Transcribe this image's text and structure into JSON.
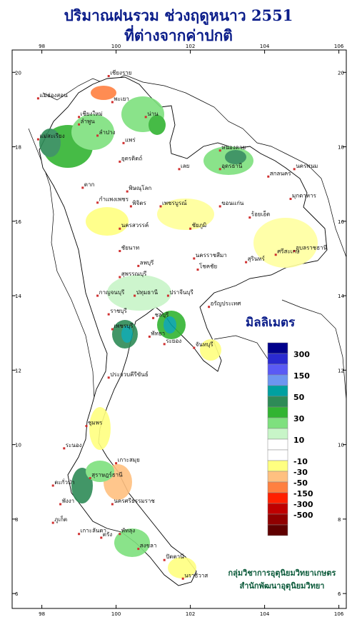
{
  "title_line1": "ปริมาณฝนรวม ช่วงฤดูหนาว 2551",
  "title_line2": "ที่ต่างจากค่าปกติ",
  "legend": {
    "unit": "มิลลิเมตร",
    "colors": [
      "#00008b",
      "#2a2ad0",
      "#5a5af5",
      "#6d95f0",
      "#00a0a0",
      "#2e8b57",
      "#32b432",
      "#7ee07e",
      "#c8f5c8",
      "#ffffff",
      "#ffffff",
      "#ffff80",
      "#ffc080",
      "#ff8040",
      "#ff2000",
      "#c00000",
      "#900000",
      "#600000"
    ],
    "labels": [
      "300",
      "150",
      "50",
      "30",
      "10",
      "-10",
      "-30",
      "-50",
      "-150",
      "-300",
      "-500"
    ]
  },
  "axes": {
    "lon_ticks": [
      "98",
      "100",
      "102",
      "104",
      "106"
    ],
    "lat_ticks": [
      "20",
      "18",
      "16",
      "14",
      "12",
      "10",
      "8",
      "6"
    ]
  },
  "places": [
    {
      "name": "เชียงราย",
      "lon": 99.8,
      "lat": 19.9
    },
    {
      "name": "แม่ฮ่องสอน",
      "lon": 97.9,
      "lat": 19.3
    },
    {
      "name": "พะเยา",
      "lon": 99.9,
      "lat": 19.2
    },
    {
      "name": "เชียงใหม่",
      "lon": 99.0,
      "lat": 18.8
    },
    {
      "name": "น่าน",
      "lon": 100.8,
      "lat": 18.8
    },
    {
      "name": "ลำพูน",
      "lon": 99.0,
      "lat": 18.6
    },
    {
      "name": "ลำปาง",
      "lon": 99.5,
      "lat": 18.3
    },
    {
      "name": "แพร่",
      "lon": 100.2,
      "lat": 18.1
    },
    {
      "name": "แม่สะเรียง",
      "lon": 97.9,
      "lat": 18.2
    },
    {
      "name": "อุตรดิตถ์",
      "lon": 100.1,
      "lat": 17.6
    },
    {
      "name": "หนองคาย",
      "lon": 102.8,
      "lat": 17.9
    },
    {
      "name": "อุดรธานี",
      "lon": 102.8,
      "lat": 17.4
    },
    {
      "name": "เลย",
      "lon": 101.7,
      "lat": 17.4
    },
    {
      "name": "สกลนคร",
      "lon": 104.1,
      "lat": 17.2
    },
    {
      "name": "นครพนม",
      "lon": 104.8,
      "lat": 17.4
    },
    {
      "name": "ตาก",
      "lon": 99.1,
      "lat": 16.9
    },
    {
      "name": "พิษณุโลก",
      "lon": 100.3,
      "lat": 16.8
    },
    {
      "name": "มุกดาหาร",
      "lon": 104.7,
      "lat": 16.6
    },
    {
      "name": "กำแพงเพชร",
      "lon": 99.5,
      "lat": 16.5
    },
    {
      "name": "พิจิตร",
      "lon": 100.4,
      "lat": 16.4
    },
    {
      "name": "เพชรบูรณ์",
      "lon": 101.2,
      "lat": 16.4
    },
    {
      "name": "ขอนแก่น",
      "lon": 102.8,
      "lat": 16.4
    },
    {
      "name": "นครสวรรค์",
      "lon": 100.1,
      "lat": 15.8
    },
    {
      "name": "ชัยภูมิ",
      "lon": 102.0,
      "lat": 15.8
    },
    {
      "name": "ชัยนาท",
      "lon": 100.1,
      "lat": 15.2
    },
    {
      "name": "ลพบุรี",
      "lon": 100.6,
      "lat": 14.8
    },
    {
      "name": "นครราชสีมา",
      "lon": 102.1,
      "lat": 15.0
    },
    {
      "name": "ร้อยเอ็ด",
      "lon": 103.6,
      "lat": 16.1
    },
    {
      "name": "อุบลราชธานี",
      "lon": 104.8,
      "lat": 15.2
    },
    {
      "name": "ศรีสะเกษ",
      "lon": 104.3,
      "lat": 15.1
    },
    {
      "name": "สุรินทร์",
      "lon": 103.5,
      "lat": 14.9
    },
    {
      "name": "โชคชัย",
      "lon": 102.2,
      "lat": 14.7
    },
    {
      "name": "สุพรรณบุรี",
      "lon": 100.1,
      "lat": 14.5
    },
    {
      "name": "กาญจนบุรี",
      "lon": 99.5,
      "lat": 14.0
    },
    {
      "name": "ปทุมธานี",
      "lon": 100.5,
      "lat": 14.0
    },
    {
      "name": "ปราจีนบุรี",
      "lon": 101.4,
      "lat": 14.0
    },
    {
      "name": "อรัญประเทศ",
      "lon": 102.5,
      "lat": 13.7
    },
    {
      "name": "ราชบุรี",
      "lon": 99.8,
      "lat": 13.5
    },
    {
      "name": "ชลบุรี",
      "lon": 101.0,
      "lat": 13.4
    },
    {
      "name": "เพชรบุรี",
      "lon": 99.9,
      "lat": 13.1
    },
    {
      "name": "พัทยา",
      "lon": 100.9,
      "lat": 12.9
    },
    {
      "name": "ระยอง",
      "lon": 101.3,
      "lat": 12.7
    },
    {
      "name": "จันทบุรี",
      "lon": 102.1,
      "lat": 12.6
    },
    {
      "name": "ประจวบคีรีขันธ์",
      "lon": 99.8,
      "lat": 11.8
    },
    {
      "name": "ชุมพร",
      "lon": 99.2,
      "lat": 10.5
    },
    {
      "name": "ระนอง",
      "lon": 98.6,
      "lat": 9.9
    },
    {
      "name": "เกาะสมุย",
      "lon": 100.0,
      "lat": 9.5
    },
    {
      "name": "สุราษฎร์ธานี",
      "lon": 99.3,
      "lat": 9.1
    },
    {
      "name": "ตะกั่วป่า",
      "lon": 98.3,
      "lat": 8.9
    },
    {
      "name": "นครศรีธรรมราช",
      "lon": 99.9,
      "lat": 8.4
    },
    {
      "name": "พังงา",
      "lon": 98.5,
      "lat": 8.4
    },
    {
      "name": "ภูเก็ต",
      "lon": 98.3,
      "lat": 7.9
    },
    {
      "name": "เกาะลันตา",
      "lon": 99.0,
      "lat": 7.6
    },
    {
      "name": "พัทลุง",
      "lon": 100.1,
      "lat": 7.6
    },
    {
      "name": "ตรัง",
      "lon": 99.6,
      "lat": 7.5
    },
    {
      "name": "สงขลา",
      "lon": 100.6,
      "lat": 7.2
    },
    {
      "name": "ปัตตานี",
      "lon": 101.3,
      "lat": 6.9
    },
    {
      "name": "นราธิวาส",
      "lon": 101.8,
      "lat": 6.4
    }
  ],
  "credit_line1": "กลุ่มวิชาการอุตุนิยมวิทยาเกษตร",
  "credit_line2": "สำนักพัฒนาอุตุนิยมวิทยา"
}
